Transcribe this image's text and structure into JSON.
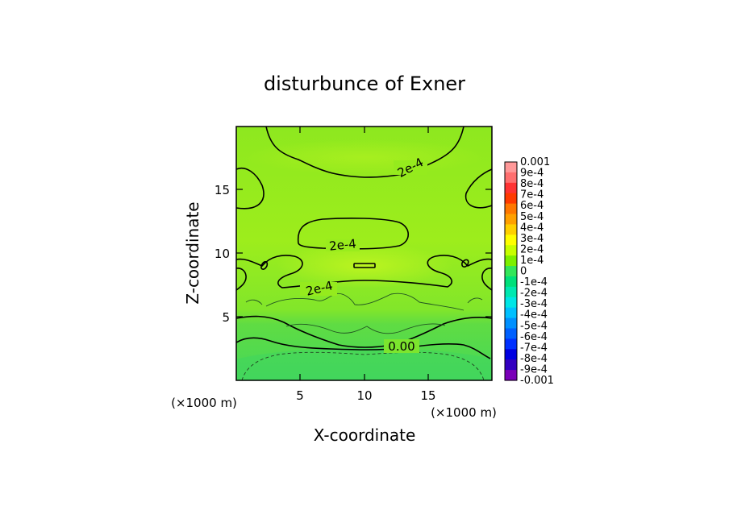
{
  "chart_data": {
    "type": "heatmap",
    "title": "disturbunce of Exner",
    "xlabel": "X-coordinate",
    "ylabel": "Z-coordinate",
    "x_unit": "(×1000 m)",
    "xlim": [
      0,
      20
    ],
    "ylim": [
      0,
      20
    ],
    "x_ticks": [
      5,
      10,
      15
    ],
    "y_ticks": [
      5,
      10,
      15
    ],
    "x_tick_labels": [
      "5",
      "10",
      "15"
    ],
    "y_tick_labels": [
      "5",
      "10",
      "15"
    ],
    "colorbar": {
      "labels": [
        "0.001",
        "9e-4",
        "8e-4",
        "7e-4",
        "6e-4",
        "5e-4",
        "4e-4",
        "3e-4",
        "2e-4",
        "1e-4",
        "0",
        "-1e-4",
        "-2e-4",
        "-3e-4",
        "-4e-4",
        "-5e-4",
        "-6e-4",
        "-7e-4",
        "-8e-4",
        "-9e-4",
        "-0.001"
      ],
      "colors": [
        "#ff9999",
        "#ff6f6f",
        "#ff3333",
        "#ff3a00",
        "#ff7700",
        "#ffa000",
        "#ffd000",
        "#ffff00",
        "#c8ff00",
        "#7df000",
        "#33e65a",
        "#00e07a",
        "#00e8b0",
        "#00e6e6",
        "#00c0ff",
        "#0090ff",
        "#0060ff",
        "#0030ff",
        "#0000e0",
        "#3300c0",
        "#7a00b8"
      ]
    },
    "contour_labels": [
      {
        "text": "2e-4",
        "x": 12.7,
        "z": 16.8
      },
      {
        "text": "2e-4",
        "x": 8.5,
        "z": 10.6
      },
      {
        "text": "2e-4",
        "x": 6.5,
        "z": 7.4
      },
      {
        "text": "0.00",
        "x": 12.8,
        "z": 2.7
      }
    ]
  },
  "colors": {
    "field_main": "#99ee1a",
    "field_low": "#55dd4a",
    "field_high": "#b8f31a"
  }
}
